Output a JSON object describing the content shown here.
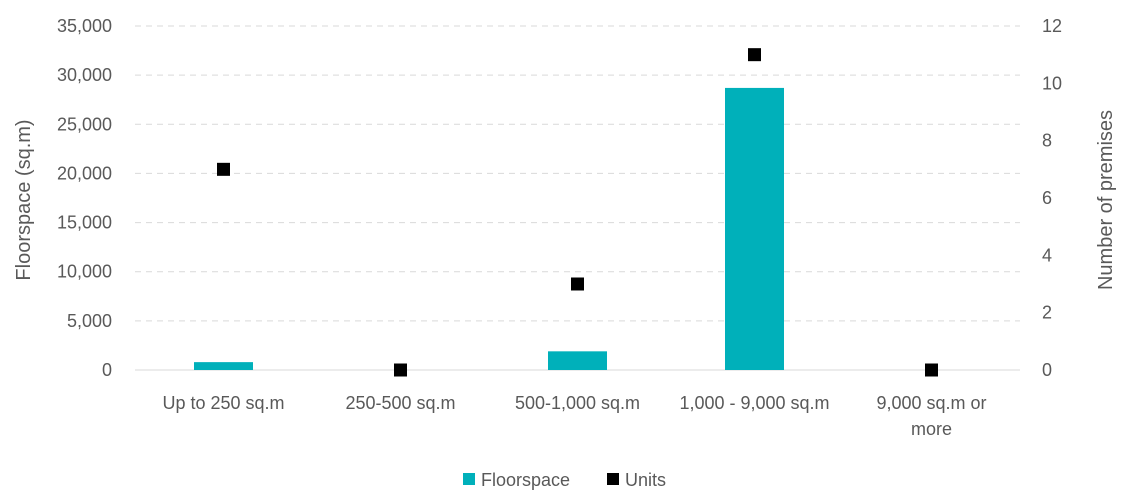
{
  "chart_data": {
    "type": "bar",
    "categories": [
      [
        "Up to 250 sq.m"
      ],
      [
        "250-500 sq.m"
      ],
      [
        "500-1,000 sq.m"
      ],
      [
        "1,000 - 9,000 sq.m"
      ],
      [
        "9,000 sq.m or",
        "more"
      ]
    ],
    "series": [
      {
        "name": "Floorspace",
        "type": "bar",
        "axis": "left",
        "color": "#00B0BA",
        "values": [
          800,
          0,
          1900,
          28700,
          0
        ]
      },
      {
        "name": "Units",
        "type": "scatter",
        "axis": "right",
        "color": "#000000",
        "values": [
          7,
          0,
          3,
          11,
          0
        ]
      }
    ],
    "ylabel": "Floorspace (sq.m)",
    "y2label": "Number of premises",
    "ylim": [
      0,
      35000
    ],
    "y2lim": [
      0,
      12
    ],
    "yticks": [
      "0",
      "5,000",
      "10,000",
      "15,000",
      "20,000",
      "25,000",
      "30,000",
      "35,000"
    ],
    "y2ticks": [
      "0",
      "2",
      "4",
      "6",
      "8",
      "10",
      "12"
    ],
    "grid": true,
    "legend_position": "bottom"
  }
}
